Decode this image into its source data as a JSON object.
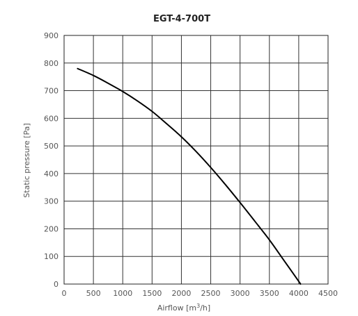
{
  "chart_data": {
    "type": "line",
    "title": "EGT-4-700T",
    "xlabel": "Airflow [m³/h]",
    "xlabel_parts": {
      "base": "Airflow [m",
      "sup": "3",
      "tail": "/h]"
    },
    "ylabel": "Static pressure [Pa]",
    "xlim": [
      0,
      4500
    ],
    "ylim": [
      0,
      900
    ],
    "xticks": [
      0,
      500,
      1000,
      1500,
      2000,
      2500,
      3000,
      3500,
      4000,
      4500
    ],
    "yticks": [
      0,
      100,
      200,
      300,
      400,
      500,
      600,
      700,
      800,
      900
    ],
    "grid": true,
    "legend": "none",
    "series": [
      {
        "color": "#000000",
        "x": [
          230,
          500,
          750,
          1000,
          1250,
          1500,
          1750,
          2000,
          2250,
          2500,
          2750,
          3000,
          3250,
          3500,
          3750,
          4000,
          4030
        ],
        "y": [
          780,
          755,
          727,
          697,
          663,
          625,
          580,
          533,
          480,
          422,
          360,
          295,
          228,
          160,
          85,
          10,
          0
        ]
      }
    ]
  }
}
